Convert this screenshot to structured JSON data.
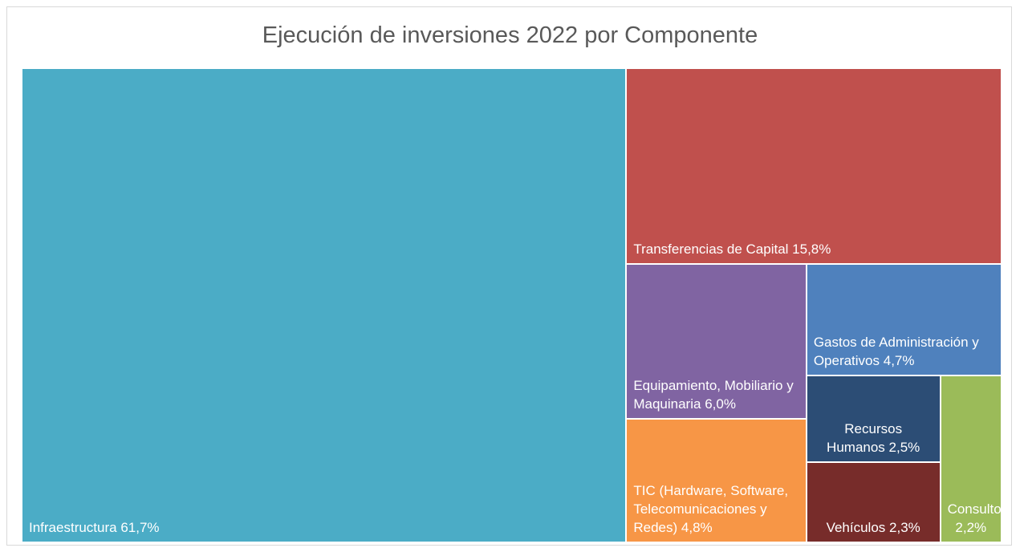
{
  "chart_data": {
    "type": "treemap",
    "title": "Ejecución de inversiones 2022 por Componente",
    "categories": [
      "Infraestructura",
      "Transferencias de Capital",
      "Equipamiento, Mobiliario y Maquinaria",
      "TIC (Hardware, Software, Telecomunicaciones y Redes)",
      "Gastos de Administración y Operativos",
      "Recursos Humanos",
      "Vehículos",
      "Consultorías"
    ],
    "values": [
      61.7,
      15.8,
      6.0,
      4.8,
      4.7,
      2.5,
      2.3,
      2.2
    ],
    "value_labels": [
      "61,7%",
      "15,8%",
      "6,0%",
      "4,8%",
      "4,7%",
      "2,5%",
      "2,3%",
      "2,2%"
    ],
    "colors": [
      "#4bacc6",
      "#c0504d",
      "#8064a2",
      "#f79646",
      "#4f81bd",
      "#2c4d75",
      "#772c2a",
      "#9bbb59"
    ]
  }
}
